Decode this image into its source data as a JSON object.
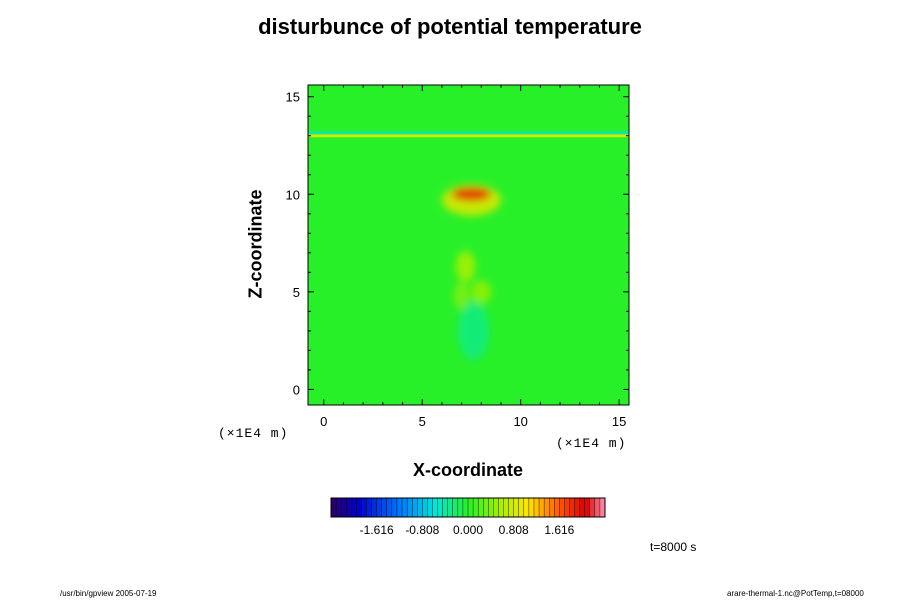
{
  "chart_data": {
    "type": "heatmap",
    "title": "disturbunce of potential temperature",
    "xlabel": "X-coordinate",
    "ylabel": "Z-coordinate",
    "x_unit": "(×1E4 m)",
    "y_unit": "(×1E4 m)",
    "xlim": [
      -0.8,
      15.5
    ],
    "ylim": [
      -0.8,
      15.6
    ],
    "x_ticks": [
      "0",
      "5",
      "10",
      "15"
    ],
    "y_ticks": [
      "0",
      "5",
      "10",
      "15"
    ],
    "colorbar": {
      "min": -2.424,
      "max": 2.424,
      "ticks": [
        "-1.616",
        "-0.808",
        "0.000",
        "0.808",
        "1.616"
      ]
    },
    "features": [
      {
        "x": 7.5,
        "z": 10.0,
        "value": 1.9,
        "rx": 1.0,
        "rz": 0.35
      },
      {
        "x": 7.5,
        "z": 9.7,
        "value": 0.9,
        "rx": 1.5,
        "rz": 0.8
      },
      {
        "x": 7.2,
        "z": 6.3,
        "value": 0.6,
        "rx": 0.5,
        "rz": 0.8
      },
      {
        "x": 8.0,
        "z": 5.0,
        "value": 0.5,
        "rx": 0.5,
        "rz": 0.6
      },
      {
        "x": 7.0,
        "z": 4.8,
        "value": 0.4,
        "rx": 0.4,
        "rz": 0.7
      },
      {
        "x": 7.6,
        "z": 3.0,
        "value": -0.3,
        "rx": 0.8,
        "rz": 1.5
      }
    ],
    "layers": [
      {
        "z": 13.0,
        "value": 0.8
      },
      {
        "z": 13.15,
        "value": -0.4
      }
    ]
  },
  "time_label": "t=8000 s",
  "footer_left": "/usr/bin/gpview 2005-07-19",
  "footer_right": "arare-thermal-1.nc@PotTemp,t=08000"
}
